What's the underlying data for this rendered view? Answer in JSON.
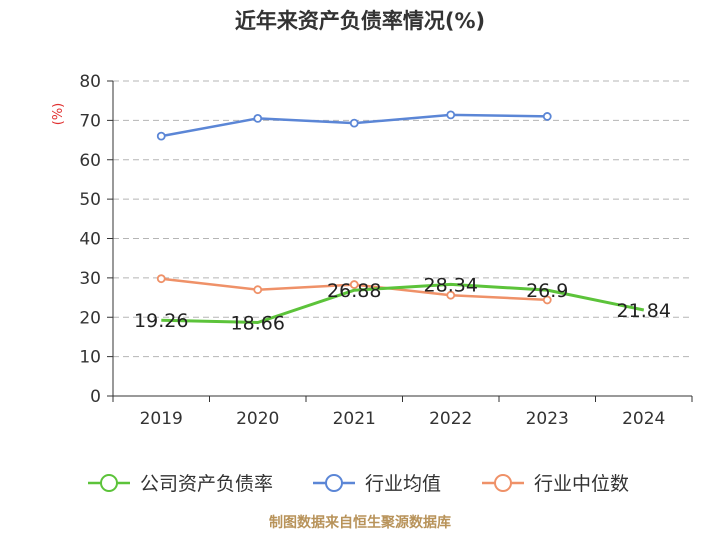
{
  "chart_data": {
    "type": "line",
    "title": "近年来资产负债率情况(%)",
    "y_unit": "(%)",
    "ylim": [
      0,
      80
    ],
    "y_ticks": [
      "0",
      "10",
      "20",
      "30",
      "40",
      "50",
      "60",
      "70",
      "80"
    ],
    "categories": [
      "2019",
      "2020",
      "2021",
      "2022",
      "2023",
      "2024"
    ],
    "grid": true,
    "legend_position": "bottom",
    "series": [
      {
        "name": "公司资产负债率",
        "color": "#5cc33a",
        "values": [
          19.26,
          18.66,
          26.88,
          28.34,
          26.9,
          21.84
        ],
        "labels": [
          "19.26",
          "18.66",
          "26.88",
          "28.34",
          "26.9",
          "21.84"
        ]
      },
      {
        "name": "行业均值",
        "color": "#5b86d6",
        "values": [
          66.0,
          70.5,
          69.3,
          71.4,
          71.0,
          null
        ]
      },
      {
        "name": "行业中位数",
        "color": "#ef9168",
        "values": [
          29.8,
          27.0,
          28.3,
          25.6,
          24.4,
          null
        ]
      }
    ],
    "source": "制图数据来自恒生聚源数据库"
  }
}
